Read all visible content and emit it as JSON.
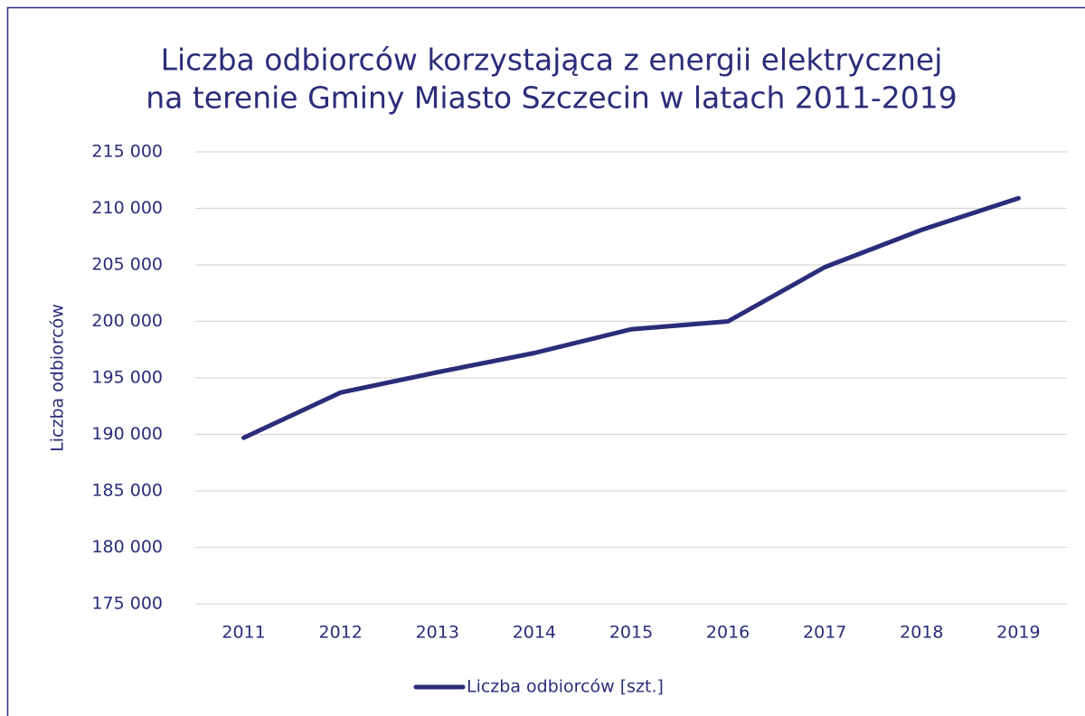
{
  "chart_data": {
    "type": "line",
    "title": [
      "Liczba odbiorców korzystająca z energii elektrycznej",
      "na terenie Gminy Miasto Szczecin w latach 2011-2019"
    ],
    "y_label": "Liczba odbiorców",
    "categories": [
      "2011",
      "2012",
      "2013",
      "2014",
      "2015",
      "2016",
      "2017",
      "2018",
      "2019"
    ],
    "series": [
      {
        "name": "Liczba odbiorców [szt.]",
        "color": "#2b2d7a",
        "values": [
          189700,
          193700,
          195500,
          197200,
          199300,
          200000,
          204800,
          208100,
          210900
        ]
      }
    ],
    "ylim": [
      175000,
      215000
    ],
    "yticks": [
      {
        "value": 175000,
        "label": "175 000"
      },
      {
        "value": 180000,
        "label": "180 000"
      },
      {
        "value": 185000,
        "label": "185 000"
      },
      {
        "value": 190000,
        "label": "190 000"
      },
      {
        "value": 195000,
        "label": "195 000"
      },
      {
        "value": 200000,
        "label": "200 000"
      },
      {
        "value": 205000,
        "label": "205 000"
      },
      {
        "value": 210000,
        "label": "210 000"
      },
      {
        "value": 215000,
        "label": "215 000"
      }
    ],
    "grid": true,
    "legend": "bottom"
  }
}
